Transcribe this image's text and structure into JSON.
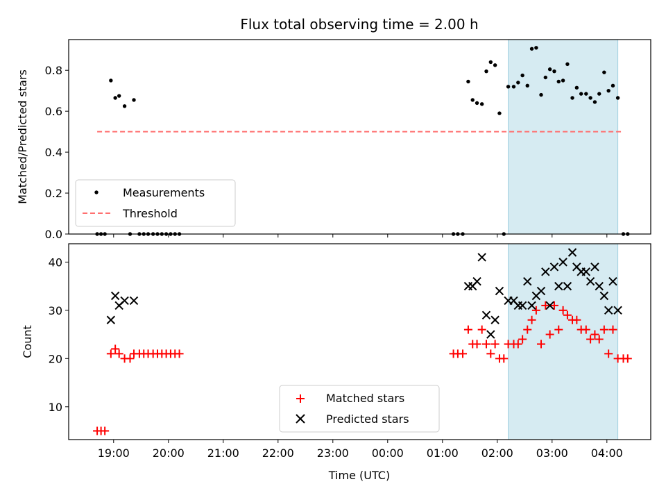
{
  "chart_data": {
    "type": "scatter",
    "title": "Flux total observing time = 2.00 h",
    "xlabel": "Time (UTC)",
    "x_ticks": [
      "19:00",
      "20:00",
      "21:00",
      "22:00",
      "23:00",
      "00:00",
      "01:00",
      "02:00",
      "03:00",
      "04:00"
    ],
    "x_range_hours": [
      18.18,
      28.8
    ],
    "highlight_span_hours": [
      26.2,
      28.2
    ],
    "top": {
      "ylabel": "Matched/Predicted stars",
      "ylim": [
        0,
        0.95
      ],
      "yticks": [
        "0.0",
        "0.2",
        "0.4",
        "0.6",
        "0.8"
      ],
      "ytick_values": [
        0,
        0.2,
        0.4,
        0.6,
        0.8
      ],
      "legend": [
        "Measurements",
        "Threshold"
      ],
      "legend_placement": "lower-left",
      "threshold": 0.5,
      "threshold_x_range_hours": [
        18.7,
        28.3
      ],
      "series": [
        {
          "name": "Measurements",
          "color": "#000000",
          "points": [
            [
              18.7,
              0
            ],
            [
              18.77,
              0
            ],
            [
              18.84,
              0
            ],
            [
              18.95,
              0.75
            ],
            [
              19.03,
              0.665
            ],
            [
              19.1,
              0.675
            ],
            [
              19.2,
              0.625
            ],
            [
              19.3,
              0
            ],
            [
              19.37,
              0.655
            ],
            [
              19.47,
              0
            ],
            [
              19.55,
              0
            ],
            [
              19.63,
              0
            ],
            [
              19.72,
              0
            ],
            [
              19.8,
              0
            ],
            [
              19.88,
              0
            ],
            [
              19.96,
              0
            ],
            [
              20.04,
              0
            ],
            [
              20.12,
              0
            ],
            [
              20.2,
              0
            ],
            [
              25.2,
              0
            ],
            [
              25.28,
              0
            ],
            [
              25.37,
              0
            ],
            [
              25.47,
              0.745
            ],
            [
              25.55,
              0.655
            ],
            [
              25.63,
              0.64
            ],
            [
              25.72,
              0.635
            ],
            [
              25.8,
              0.795
            ],
            [
              25.88,
              0.84
            ],
            [
              25.96,
              0.825
            ],
            [
              26.04,
              0.59
            ],
            [
              26.12,
              0
            ],
            [
              26.2,
              0.72
            ],
            [
              26.3,
              0.72
            ],
            [
              26.38,
              0.74
            ],
            [
              26.46,
              0.775
            ],
            [
              26.55,
              0.725
            ],
            [
              26.63,
              0.905
            ],
            [
              26.71,
              0.91
            ],
            [
              26.8,
              0.68
            ],
            [
              26.88,
              0.765
            ],
            [
              26.96,
              0.805
            ],
            [
              27.04,
              0.795
            ],
            [
              27.12,
              0.745
            ],
            [
              27.2,
              0.75
            ],
            [
              27.28,
              0.83
            ],
            [
              27.37,
              0.665
            ],
            [
              27.45,
              0.715
            ],
            [
              27.53,
              0.685
            ],
            [
              27.62,
              0.685
            ],
            [
              27.7,
              0.665
            ],
            [
              27.78,
              0.645
            ],
            [
              27.86,
              0.685
            ],
            [
              27.95,
              0.79
            ],
            [
              28.03,
              0.7
            ],
            [
              28.11,
              0.725
            ],
            [
              28.2,
              0.665
            ],
            [
              28.3,
              0
            ],
            [
              28.38,
              0
            ]
          ]
        }
      ]
    },
    "bottom": {
      "ylabel": "Count",
      "ylim": [
        3.2,
        43.8
      ],
      "yticks": [
        "10",
        "20",
        "30",
        "40"
      ],
      "ytick_values": [
        10,
        20,
        30,
        40
      ],
      "legend": [
        "Matched stars",
        "Predicted stars"
      ],
      "legend_placement": "lower-center",
      "series": [
        {
          "name": "Matched stars",
          "color": "#ff0000",
          "points": [
            [
              18.7,
              5
            ],
            [
              18.77,
              5
            ],
            [
              18.84,
              5
            ],
            [
              18.95,
              21
            ],
            [
              19.03,
              22
            ],
            [
              19.1,
              21
            ],
            [
              19.2,
              20
            ],
            [
              19.3,
              20
            ],
            [
              19.37,
              21
            ],
            [
              19.47,
              21
            ],
            [
              19.55,
              21
            ],
            [
              19.63,
              21
            ],
            [
              19.72,
              21
            ],
            [
              19.8,
              21
            ],
            [
              19.88,
              21
            ],
            [
              19.96,
              21
            ],
            [
              20.04,
              21
            ],
            [
              20.12,
              21
            ],
            [
              20.2,
              21
            ],
            [
              25.2,
              21
            ],
            [
              25.28,
              21
            ],
            [
              25.37,
              21
            ],
            [
              25.47,
              26
            ],
            [
              25.55,
              23
            ],
            [
              25.63,
              23
            ],
            [
              25.72,
              26
            ],
            [
              25.8,
              23
            ],
            [
              25.88,
              21
            ],
            [
              25.96,
              23
            ],
            [
              26.04,
              20
            ],
            [
              26.12,
              20
            ],
            [
              26.2,
              23
            ],
            [
              26.3,
              23
            ],
            [
              26.38,
              23
            ],
            [
              26.46,
              24
            ],
            [
              26.55,
              26
            ],
            [
              26.63,
              28
            ],
            [
              26.71,
              30
            ],
            [
              26.8,
              23
            ],
            [
              26.88,
              31
            ],
            [
              26.96,
              25
            ],
            [
              27.04,
              31
            ],
            [
              27.12,
              26
            ],
            [
              27.2,
              30
            ],
            [
              27.28,
              29
            ],
            [
              27.37,
              28
            ],
            [
              27.45,
              28
            ],
            [
              27.53,
              26
            ],
            [
              27.62,
              26
            ],
            [
              27.7,
              24
            ],
            [
              27.78,
              25
            ],
            [
              27.86,
              24
            ],
            [
              27.95,
              26
            ],
            [
              28.03,
              21
            ],
            [
              28.11,
              26
            ],
            [
              28.2,
              20
            ],
            [
              28.3,
              20
            ],
            [
              28.38,
              20
            ]
          ]
        },
        {
          "name": "Predicted stars",
          "color": "#000000",
          "points": [
            [
              18.95,
              28
            ],
            [
              19.03,
              33
            ],
            [
              19.1,
              31
            ],
            [
              19.2,
              32
            ],
            [
              19.37,
              32
            ],
            [
              25.47,
              35
            ],
            [
              25.55,
              35
            ],
            [
              25.63,
              36
            ],
            [
              25.72,
              41
            ],
            [
              25.8,
              29
            ],
            [
              25.88,
              25
            ],
            [
              25.96,
              28
            ],
            [
              26.04,
              34
            ],
            [
              26.2,
              32
            ],
            [
              26.3,
              32
            ],
            [
              26.38,
              31
            ],
            [
              26.46,
              31
            ],
            [
              26.55,
              36
            ],
            [
              26.63,
              31
            ],
            [
              26.71,
              33
            ],
            [
              26.8,
              34
            ],
            [
              26.88,
              38
            ],
            [
              26.96,
              31
            ],
            [
              27.04,
              39
            ],
            [
              27.12,
              35
            ],
            [
              27.2,
              40
            ],
            [
              27.28,
              35
            ],
            [
              27.37,
              42
            ],
            [
              27.45,
              39
            ],
            [
              27.53,
              38
            ],
            [
              27.62,
              38
            ],
            [
              27.7,
              36
            ],
            [
              27.78,
              39
            ],
            [
              27.86,
              35
            ],
            [
              27.95,
              33
            ],
            [
              28.03,
              30
            ],
            [
              28.11,
              36
            ],
            [
              28.2,
              30
            ]
          ]
        }
      ]
    }
  }
}
